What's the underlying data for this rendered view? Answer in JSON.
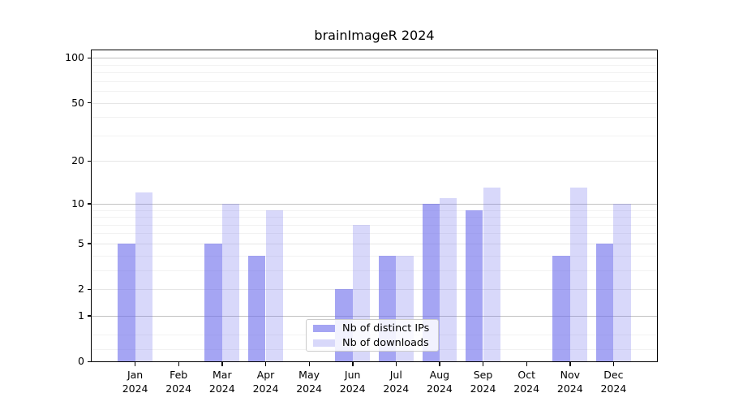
{
  "colors": {
    "bar_dark_rgba": "rgba(110,110,235,0.62)",
    "bar_light_rgba": "rgba(110,110,235,0.27)",
    "grid_decade": "#c2c2c2",
    "grid_major_other": "#e6e6e6",
    "grid_minor": "#f2f2f2",
    "axis_line": "#000000",
    "legend_border": "#cccccc"
  },
  "chart_data": {
    "type": "bar",
    "title": "brainImageR 2024",
    "categories": [
      "Jan",
      "Feb",
      "Mar",
      "Apr",
      "May",
      "Jun",
      "Jul",
      "Aug",
      "Sep",
      "Oct",
      "Nov",
      "Dec"
    ],
    "year_label": "2024",
    "series": [
      {
        "name": "Nb of distinct IPs",
        "values": [
          5,
          0,
          5,
          4,
          0,
          2,
          4,
          10,
          9,
          0,
          4,
          5
        ]
      },
      {
        "name": "Nb of downloads",
        "values": [
          12,
          0,
          10,
          9,
          0,
          7,
          4,
          11,
          13,
          0,
          13,
          10
        ]
      }
    ],
    "yscale": "log1p",
    "yticks": [
      0,
      1,
      2,
      5,
      10,
      20,
      50,
      100
    ],
    "decade_ticks": [
      1,
      10,
      100
    ],
    "minor_ticks": [
      0.2,
      0.5,
      3,
      4,
      6,
      7,
      8,
      9,
      30,
      40,
      60,
      70,
      80,
      90
    ],
    "ylim_top_value": 112,
    "grid": "on",
    "legend_position": "lower center",
    "xlabel": "",
    "ylabel": ""
  }
}
